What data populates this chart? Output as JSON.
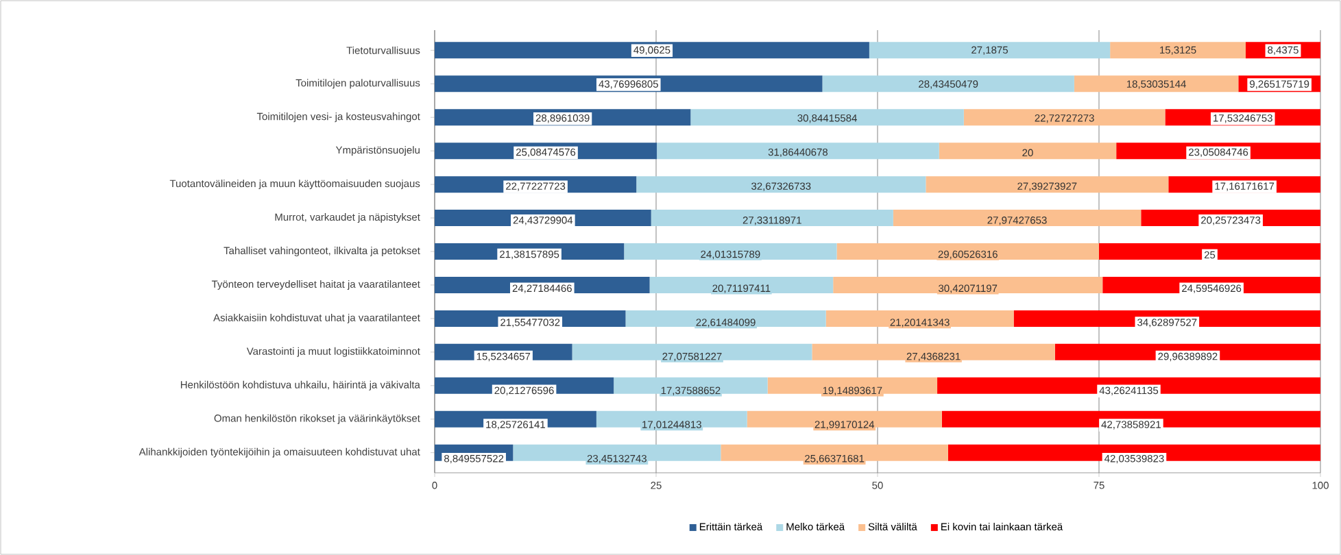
{
  "chart_data": {
    "type": "bar",
    "orientation": "horizontal",
    "stacked": true,
    "categories": [
      "Tietoturvallisuus",
      "Toimitilojen paloturvallisuus",
      "Toimitilojen vesi- ja kosteusvahingot",
      "Ympäristönsuojelu",
      "Tuotantovälineiden ja muun käyttöomaisuuden suojaus",
      "Murrot, varkaudet ja näpistykset",
      "Tahalliset vahingonteot, ilkivalta ja petokset",
      "Työnteon terveydelliset haitat ja vaaratilanteet",
      "Asiakkaisiin kohdistuvat uhat ja vaaratilanteet",
      "Varastointi ja muut logistiikkatoiminnot",
      "Henkilöstöön kohdistuva uhkailu, häirintä ja väkivalta",
      "Oman henkilöstön rikokset ja väärinkäytökset",
      "Alihankkijoiden työntekijöihin ja omaisuuteen kohdistuvat uhat"
    ],
    "series": [
      {
        "name": "Erittäin tärkeä",
        "color": "#2e5f95",
        "values": [
          49.0625,
          43.76996805,
          28.8961039,
          25.08474576,
          22.77227723,
          24.43729904,
          21.38157895,
          24.27184466,
          21.55477032,
          15.5234657,
          20.21276596,
          18.25726141,
          8.849557522
        ],
        "value_labels": [
          "49,0625",
          "43,76996805",
          "28,8961039",
          "25,08474576",
          "22,77227723",
          "24,43729904",
          "21,38157895",
          "24,27184466",
          "21,55477032",
          "15,5234657",
          "20,21276596",
          "18,25726141",
          "8,849557522"
        ]
      },
      {
        "name": "Melko tärkeä",
        "color": "#add8e6",
        "values": [
          27.1875,
          28.43450479,
          30.84415584,
          31.86440678,
          32.67326733,
          27.33118971,
          24.01315789,
          20.71197411,
          22.61484099,
          27.07581227,
          17.37588652,
          17.01244813,
          23.45132743
        ],
        "value_labels": [
          "27,1875",
          "28,43450479",
          "30,84415584",
          "31,86440678",
          "32,67326733",
          "27,33118971",
          "24,01315789",
          "20,71197411",
          "22,61484099",
          "27,07581227",
          "17,37588652",
          "17,01244813",
          "23,45132743"
        ]
      },
      {
        "name": "Siltä väliltä",
        "color": "#fbbf8f",
        "values": [
          15.3125,
          18.53035144,
          22.72727273,
          20,
          27.39273927,
          27.97427653,
          29.60526316,
          30.42071197,
          21.20141343,
          27.4368231,
          19.14893617,
          21.99170124,
          25.66371681
        ],
        "value_labels": [
          "15,3125",
          "18,53035144",
          "22,72727273",
          "20",
          "27,39273927",
          "27,97427653",
          "29,60526316",
          "30,42071197",
          "21,20141343",
          "27,4368231",
          "19,14893617",
          "21,99170124",
          "25,66371681"
        ]
      },
      {
        "name": "Ei kovin tai lainkaan tärkeä",
        "color": "#ff0000",
        "values": [
          8.4375,
          9.265175719,
          17.53246753,
          23.05084746,
          17.16171617,
          20.25723473,
          25,
          24.59546926,
          34.62897527,
          29.96389892,
          43.26241135,
          42.73858921,
          42.03539823
        ],
        "value_labels": [
          "8,4375",
          "9,265175719",
          "17,53246753",
          "23,05084746",
          "17,16171617",
          "20,25723473",
          "25",
          "24,59546926",
          "34,62897527",
          "29,96389892",
          "43,26241135",
          "42,73858921",
          "42,03539823"
        ]
      }
    ],
    "xlim": [
      0,
      100
    ],
    "xticks": [
      0,
      25,
      50,
      75,
      100
    ],
    "grid": "x",
    "legend": "bottom"
  }
}
